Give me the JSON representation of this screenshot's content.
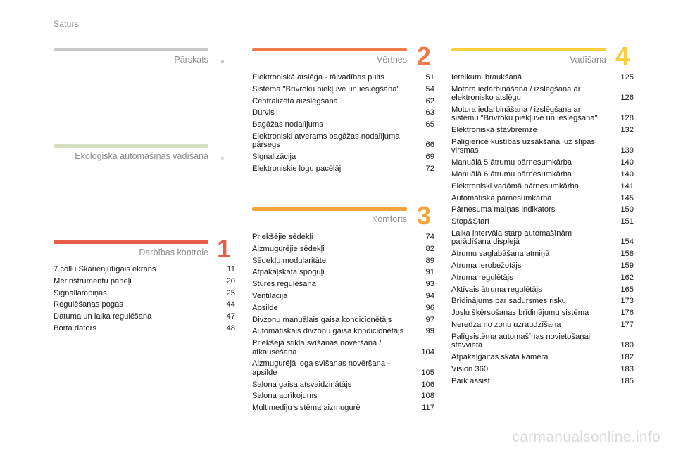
{
  "header": {
    "title": "Saturs"
  },
  "sections": {
    "parskats": {
      "title": "Pārskats",
      "color": "#c8c8c8"
    },
    "ekologiska": {
      "title": "Ekoloģiskā automašīnas vadīšana",
      "color": "#d6dfc0"
    },
    "darbibas": {
      "title": "Darbības kontrole",
      "number": "1",
      "color": "#e85d4a",
      "items": [
        {
          "label": "7 collu Skārienjūtīgais ekrāns",
          "page": "11"
        },
        {
          "label": "Mērinstrumentu paneļi",
          "page": "20"
        },
        {
          "label": "Signāllampiņas",
          "page": "25"
        },
        {
          "label": "Regulēšanas pogas",
          "page": "44"
        },
        {
          "label": "Datuma un laika regulēšana",
          "page": "47"
        },
        {
          "label": "Borta dators",
          "page": "48"
        }
      ]
    },
    "vertnes": {
      "title": "Vērtnes",
      "number": "2",
      "color": "#ef7b4a",
      "items": [
        {
          "label": "Elektroniskā atslēga - tālvadības pults",
          "page": "51"
        },
        {
          "label": "Sistēma \"Brīvroku piekļuve un ieslēgšana\"",
          "page": "54"
        },
        {
          "label": "Centralizētā aizslēgšana",
          "page": "62"
        },
        {
          "label": "Durvis",
          "page": "63"
        },
        {
          "label": "Bagāžas nodalījums",
          "page": "65"
        },
        {
          "label": "Elektroniski atverams bagāžas nodalījuma pārsegs",
          "page": "66"
        },
        {
          "label": "Signalizācija",
          "page": "69"
        },
        {
          "label": "Elektroniskie logu pacēlāji",
          "page": "72"
        }
      ]
    },
    "komforts": {
      "title": "Komforts",
      "number": "3",
      "color": "#f5a43a",
      "items": [
        {
          "label": "Priekšējie sēdekļi",
          "page": "74"
        },
        {
          "label": "Aizmugurējie sēdekļi",
          "page": "82"
        },
        {
          "label": "Sēdekļu modularitāte",
          "page": "89"
        },
        {
          "label": "Atpakaļskata spoguļi",
          "page": "91"
        },
        {
          "label": "Stūres regulēšana",
          "page": "93"
        },
        {
          "label": "Ventilācija",
          "page": "94"
        },
        {
          "label": "Apsilde",
          "page": "96"
        },
        {
          "label": "Divzonu manuālais gaisa kondicionētājs",
          "page": "97"
        },
        {
          "label": "Automātiskais divzonu gaisa kondicionētājs",
          "page": "99"
        },
        {
          "label": "Priekšējā stikla svīšanas novēršana / atkausēšana",
          "page": "104"
        },
        {
          "label": "Aizmugurējā loga svīšanas novēršana - apsilde",
          "page": "105"
        },
        {
          "label": "Salona gaisa atsvaidzinātājs",
          "page": "106"
        },
        {
          "label": "Salona aprīkojums",
          "page": "108"
        },
        {
          "label": "Multimediju sistēma aizmugurē",
          "page": "117"
        }
      ]
    },
    "vadisana": {
      "title": "Vadīšana",
      "number": "4",
      "color": "#f7cf3a",
      "items": [
        {
          "label": "Ieteikumi braukšanā",
          "page": "125"
        },
        {
          "label": "Motora iedarbināšana / izslēgšana ar elektronisko atslēgu",
          "page": "126"
        },
        {
          "label": "Motora iedarbināšana / izslēgšana ar sistēmu \"Brīvroku piekļuve un ieslēgšana\"",
          "page": "128"
        },
        {
          "label": "Elektroniskā stāvbremze",
          "page": "132"
        },
        {
          "label": "Palīgierīce kustības uzsākšanai uz slīpas virsmas",
          "page": "139"
        },
        {
          "label": "Manuālā 5 ātrumu pārnesumkārba",
          "page": "140"
        },
        {
          "label": "Manuālā 6 ātrumu pārnesumkārba",
          "page": "140"
        },
        {
          "label": "Elektroniski vadāmā pārnesumkārba",
          "page": "141"
        },
        {
          "label": "Automātiskā pārnesumkārba",
          "page": "145"
        },
        {
          "label": "Pārnesuma maiņas indikators",
          "page": "150"
        },
        {
          "label": "Stop&Start",
          "page": "151"
        },
        {
          "label": "Laika intervāla starp automašīnām parādīšana displejā",
          "page": "154"
        },
        {
          "label": "Ātrumu saglabāšana atmiņā",
          "page": "158"
        },
        {
          "label": "Ātruma ierobežotājs",
          "page": "159"
        },
        {
          "label": "Ātruma regulētājs",
          "page": "162"
        },
        {
          "label": "Aktīvais ātruma regulētājs",
          "page": "165"
        },
        {
          "label": "Brīdinājums par sadursmes risku",
          "page": "173"
        },
        {
          "label": "Joslu šķērsošanas brīdinājumu sistēma",
          "page": "176"
        },
        {
          "label": "Neredzamo zonu uzraudzīšana",
          "page": "177"
        },
        {
          "label": "Palīgsistēma automašīnas novietošanai stāvvietā",
          "page": "180"
        },
        {
          "label": "Atpakaļgaitas skata kamera",
          "page": "182"
        },
        {
          "label": "Vision 360",
          "page": "183"
        },
        {
          "label": "Park assist",
          "page": "185"
        }
      ]
    }
  },
  "watermark": "carmanualsonline.info"
}
